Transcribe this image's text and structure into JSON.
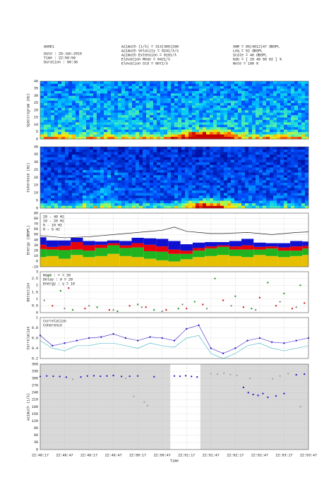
{
  "header": {
    "col1": [
      "AGOE1",
      "Date   : 29-Jan-2015",
      "Time   : 22:50:59",
      "Duration : 00:38"
    ],
    "col2": [
      "Azimuth (1/λ)     = 313(305)298",
      "Azimuth Velocity  = 0241/λ/s",
      "Azimuth Extension = 0101/λ",
      "Elevation Mean    = 0421/λ",
      "Elevation Std     = 0071/λ"
    ],
    "col3": [
      "SNR   = 05(4012)47 dBSPL",
      "Leq   = 52 dBSPL",
      "Scale = 46 dBSPL",
      "Gab   = [ 29 48 50 02 ] %",
      "Note  = 100 %"
    ]
  },
  "chart_data": [
    {
      "type": "heatmap",
      "ylabel": "Spectrogram (Hz)",
      "ylim": [
        0,
        40
      ],
      "yticks": [
        0,
        5,
        10,
        15,
        20,
        25,
        30,
        35,
        40
      ],
      "style": "spectrogram"
    },
    {
      "type": "heatmap",
      "ylabel": "Coherence (Hz)",
      "ylim": [
        0,
        40
      ],
      "yticks": [
        0,
        5,
        10,
        15,
        20,
        25,
        30,
        35,
        40
      ],
      "style": "coherence"
    },
    {
      "type": "stacked_bar",
      "ylabel": "Energy (dBSPL)",
      "ylim": [
        -10,
        90
      ],
      "yticks": [
        -10,
        0,
        10,
        20,
        30,
        40,
        50,
        60,
        70,
        80,
        90
      ],
      "x": [
        0,
        15,
        30,
        45,
        60,
        75,
        90,
        105,
        120,
        135,
        150,
        165,
        180,
        195,
        210,
        225,
        240,
        255,
        270,
        285,
        300,
        315,
        330
      ],
      "series": [
        {
          "name": "0 - 5 Hz",
          "color": "#e6c000",
          "values": [
            18,
            20,
            15,
            22,
            18,
            20,
            24,
            20,
            18,
            15,
            12,
            10,
            14,
            18,
            20,
            22,
            20,
            18,
            22,
            20,
            18,
            20,
            22
          ]
        },
        {
          "name": "5 - 10 Hz",
          "color": "#1fb41f",
          "values": [
            15,
            12,
            16,
            10,
            12,
            15,
            16,
            15,
            18,
            14,
            16,
            14,
            10,
            12,
            14,
            15,
            12,
            14,
            10,
            14,
            12,
            10,
            12
          ]
        },
        {
          "name": "10 - 20 Hz",
          "color": "#e8000b",
          "values": [
            8,
            5,
            8,
            14,
            10,
            6,
            4,
            5,
            8,
            12,
            10,
            8,
            6,
            5,
            4,
            3,
            6,
            8,
            5,
            4,
            6,
            8,
            5
          ]
        },
        {
          "color": "#1010d0",
          "values": [
            14,
            12,
            10,
            8,
            8,
            6,
            5,
            8,
            10,
            12,
            14,
            16,
            12,
            10,
            8,
            6,
            10,
            12,
            8,
            6,
            8,
            10,
            8
          ]
        }
      ],
      "line": {
        "name": "20 - 40 Hz",
        "color": "#222222",
        "values": [
          48,
          46,
          44,
          45,
          46,
          48,
          50,
          52,
          54,
          56,
          58,
          64,
          56,
          54,
          52,
          52,
          53,
          54,
          52,
          50,
          52,
          54,
          55
        ]
      }
    },
    {
      "type": "scatter",
      "ylabel": "Detection",
      "ylim": [
        0,
        3
      ],
      "yticks": [
        0,
        0.5,
        1,
        1.5,
        2,
        2.5,
        3
      ],
      "series": [
        {
          "name": "Narm  : + = 20",
          "color": "#2a9a2a",
          "x": [
            10,
            25,
            40,
            70,
            95,
            120,
            140,
            170,
            190,
            215,
            240,
            260,
            280,
            300,
            320
          ],
          "values": [
            2.7,
            1.6,
            0.2,
            0.4,
            0.1,
            0.6,
            0.2,
            0.3,
            0.8,
            2.5,
            1.2,
            0.3,
            2.2,
            1.4,
            2.0
          ]
        },
        {
          "name": "Delay : ∂ = 20",
          "color": "#d02020",
          "x": [
            15,
            35,
            55,
            85,
            110,
            130,
            155,
            180,
            200,
            225,
            250,
            270,
            290,
            310,
            325
          ],
          "values": [
            0.5,
            1.8,
            0.3,
            0.2,
            0.5,
            0.4,
            0.2,
            0.3,
            0.6,
            0.9,
            0.4,
            1.1,
            0.5,
            0.3,
            0.7
          ]
        },
        {
          "name": "Energy : γ = 10",
          "color": "#888888",
          "x": [
            5,
            30,
            60,
            90,
            125,
            150,
            175,
            205,
            235,
            265,
            295,
            315
          ],
          "values": [
            0.9,
            0.3,
            0.5,
            0.2,
            0.4,
            0.1,
            0.6,
            0.3,
            0.5,
            0.2,
            0.8,
            0.4
          ]
        }
      ]
    },
    {
      "type": "line",
      "ylabel": "Correlation",
      "ylim": [
        0.2,
        1
      ],
      "yticks": [
        0.2,
        0.4,
        0.6,
        0.8,
        1
      ],
      "x": [
        0,
        15,
        30,
        45,
        60,
        75,
        90,
        105,
        120,
        135,
        150,
        165,
        180,
        195,
        210,
        225,
        240,
        255,
        270,
        285,
        300,
        315,
        330
      ],
      "series": [
        {
          "name": "Correlation",
          "color": "#3a20c8",
          "values": [
            0.65,
            0.45,
            0.5,
            0.55,
            0.6,
            0.62,
            0.68,
            0.6,
            0.55,
            0.62,
            0.6,
            0.55,
            0.78,
            0.85,
            0.4,
            0.3,
            0.4,
            0.55,
            0.6,
            0.52,
            0.5,
            0.55,
            0.6
          ]
        },
        {
          "name": "Coherence",
          "color": "#30b0c0",
          "values": [
            0.55,
            0.4,
            0.35,
            0.45,
            0.45,
            0.5,
            0.5,
            0.45,
            0.4,
            0.5,
            0.45,
            0.42,
            0.6,
            0.65,
            0.3,
            0.2,
            0.3,
            0.45,
            0.5,
            0.4,
            0.35,
            0.4,
            0.45
          ]
        }
      ]
    },
    {
      "type": "scatter",
      "ylabel": "Azimuth (1/λ)",
      "xlabel": "Time",
      "ylim": [
        0,
        360
      ],
      "yticks": [
        0,
        30,
        60,
        90,
        120,
        150,
        180,
        210,
        240,
        270,
        300,
        330,
        360
      ],
      "xlim": [
        0,
        330
      ],
      "xticks": [
        {
          "value": 0,
          "label": "22:48:17"
        },
        {
          "value": 30,
          "label": "22:48:47"
        },
        {
          "value": 60,
          "label": "22:49:17"
        },
        {
          "value": 90,
          "label": "22:49:47"
        },
        {
          "value": 120,
          "label": "22:50:17"
        },
        {
          "value": 150,
          "label": "22:50:47"
        },
        {
          "value": 180,
          "label": "22:51:17"
        },
        {
          "value": 210,
          "label": "22:51:47"
        },
        {
          "value": 240,
          "label": "22:52:17"
        },
        {
          "value": 270,
          "label": "22:52:47"
        },
        {
          "value": 300,
          "label": "22:53:17"
        },
        {
          "value": 330,
          "label": "22:53:47"
        }
      ],
      "unshaded_x": [
        160,
        197
      ],
      "series": [
        {
          "color": "#3a20c8",
          "x": [
            0,
            8,
            16,
            24,
            32,
            50,
            58,
            66,
            74,
            82,
            90,
            100,
            110,
            120,
            140,
            165,
            172,
            179,
            186,
            193,
            250,
            256,
            262,
            268,
            274,
            280,
            290,
            300,
            315,
            325
          ],
          "values": [
            308,
            310,
            309,
            308,
            305,
            306,
            310,
            311,
            309,
            310,
            312,
            308,
            309,
            310,
            307,
            310,
            309,
            311,
            308,
            306,
            262,
            240,
            232,
            228,
            236,
            220,
            226,
            236,
            315,
            318
          ]
        },
        {
          "color": "#aaaaaa",
          "x": [
            40,
            105,
            115,
            128,
            132,
            210,
            218,
            226,
            234,
            242,
            258,
            286,
            295,
            305,
            320
          ],
          "values": [
            296,
            300,
            224,
            200,
            185,
            320,
            318,
            322,
            316,
            312,
            300,
            298,
            310,
            320,
            180
          ]
        }
      ]
    }
  ]
}
